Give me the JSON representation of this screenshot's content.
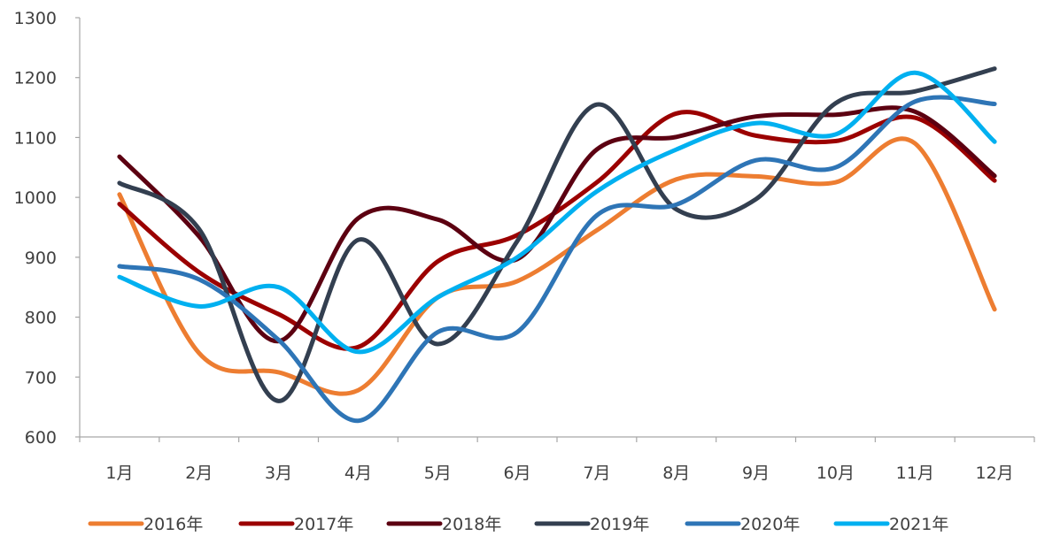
{
  "chart_data": {
    "type": "line",
    "smooth": true,
    "title": "",
    "xlabel": "",
    "ylabel": "",
    "categories": [
      "1月",
      "2月",
      "3月",
      "4月",
      "5月",
      "6月",
      "7月",
      "8月",
      "9月",
      "10月",
      "11月",
      "12月"
    ],
    "ylim": [
      600,
      1300
    ],
    "yticks": [
      "600",
      "700",
      "800",
      "900",
      "1000",
      "1100",
      "1200",
      "1300"
    ],
    "grid": false,
    "legend_position": "bottom",
    "series": [
      {
        "name": "2016年",
        "color": "#ED7D31",
        "values": [
          1005,
          740,
          708,
          678,
          833,
          860,
          945,
          1030,
          1035,
          1025,
          1090,
          813
        ]
      },
      {
        "name": "2017年",
        "color": "#9B0000",
        "values": [
          989,
          875,
          805,
          750,
          893,
          937,
          1025,
          1140,
          1103,
          1094,
          1133,
          1028
        ]
      },
      {
        "name": "2018年",
        "color": "#5C0011",
        "values": [
          1068,
          935,
          760,
          965,
          963,
          897,
          1080,
          1101,
          1135,
          1138,
          1143,
          1036
        ]
      },
      {
        "name": "2019年",
        "color": "#333F50",
        "values": [
          1024,
          947,
          660,
          929,
          755,
          927,
          1155,
          980,
          997,
          1157,
          1177,
          1215
        ]
      },
      {
        "name": "2020年",
        "color": "#2E75B6",
        "values": [
          885,
          863,
          762,
          627,
          775,
          775,
          970,
          988,
          1062,
          1050,
          1160,
          1156
        ]
      },
      {
        "name": "2021年",
        "color": "#00B0F0",
        "values": [
          867,
          818,
          850,
          742,
          833,
          900,
          1010,
          1080,
          1124,
          1105,
          1208,
          1093
        ]
      }
    ]
  }
}
